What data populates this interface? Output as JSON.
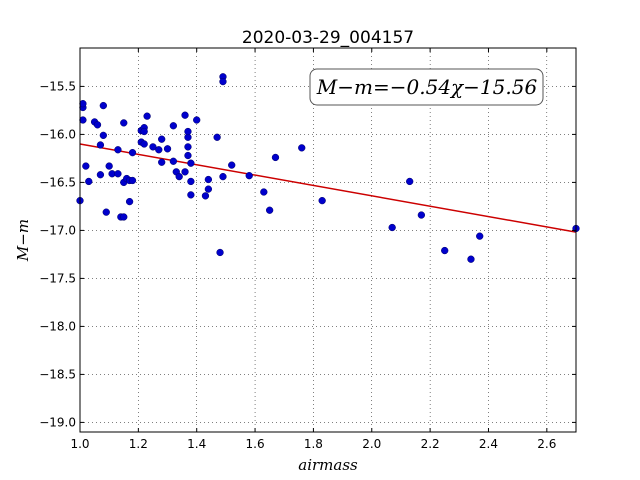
{
  "chart_data": {
    "type": "scatter",
    "title": "2020-03-29_004157",
    "xlabel": "airmass",
    "ylabel": "M−m",
    "xlim": [
      1.0,
      2.7
    ],
    "ylim": [
      -19.1,
      -15.1
    ],
    "xticks": [
      1.0,
      1.2,
      1.4,
      1.6,
      1.8,
      2.0,
      2.2,
      2.4,
      2.6
    ],
    "xtick_labels": [
      "1.0",
      "1.2",
      "1.4",
      "1.6",
      "1.8",
      "2.0",
      "2.2",
      "2.4",
      "2.6"
    ],
    "yticks": [
      -15.5,
      -16.0,
      -16.5,
      -17.0,
      -17.5,
      -18.0,
      -18.5,
      -19.0
    ],
    "ytick_labels": [
      "−15.5",
      "−16.0",
      "−16.5",
      "−17.0",
      "−17.5",
      "−18.0",
      "−18.5",
      "−19.0"
    ],
    "grid": true,
    "annotation": "M−m=−0.54χ−15.56",
    "annotation_placement": "top-right",
    "point_color": "#0000cc",
    "fit_color": "#cc0000",
    "fit": {
      "slope": -0.54,
      "intercept": -15.56
    },
    "points": [
      [
        1.0,
        -16.69
      ],
      [
        1.01,
        -15.72
      ],
      [
        1.01,
        -15.68
      ],
      [
        1.01,
        -15.85
      ],
      [
        1.02,
        -16.33
      ],
      [
        1.03,
        -16.49
      ],
      [
        1.05,
        -15.87
      ],
      [
        1.06,
        -15.9
      ],
      [
        1.07,
        -16.42
      ],
      [
        1.07,
        -16.11
      ],
      [
        1.08,
        -15.7
      ],
      [
        1.08,
        -16.01
      ],
      [
        1.09,
        -16.81
      ],
      [
        1.1,
        -16.33
      ],
      [
        1.11,
        -16.41
      ],
      [
        1.13,
        -16.41
      ],
      [
        1.13,
        -16.16
      ],
      [
        1.14,
        -16.86
      ],
      [
        1.15,
        -16.86
      ],
      [
        1.15,
        -16.5
      ],
      [
        1.15,
        -15.88
      ],
      [
        1.16,
        -16.46
      ],
      [
        1.17,
        -16.48
      ],
      [
        1.17,
        -16.7
      ],
      [
        1.18,
        -16.19
      ],
      [
        1.18,
        -16.48
      ],
      [
        1.21,
        -16.08
      ],
      [
        1.21,
        -15.96
      ],
      [
        1.22,
        -15.93
      ],
      [
        1.22,
        -16.1
      ],
      [
        1.22,
        -15.97
      ],
      [
        1.23,
        -15.81
      ],
      [
        1.25,
        -16.13
      ],
      [
        1.27,
        -16.16
      ],
      [
        1.28,
        -16.05
      ],
      [
        1.28,
        -16.29
      ],
      [
        1.3,
        -16.15
      ],
      [
        1.32,
        -15.91
      ],
      [
        1.32,
        -16.28
      ],
      [
        1.33,
        -16.39
      ],
      [
        1.34,
        -16.44
      ],
      [
        1.36,
        -16.39
      ],
      [
        1.36,
        -15.8
      ],
      [
        1.37,
        -16.03
      ],
      [
        1.37,
        -15.97
      ],
      [
        1.37,
        -16.13
      ],
      [
        1.37,
        -16.22
      ],
      [
        1.38,
        -16.3
      ],
      [
        1.38,
        -16.49
      ],
      [
        1.38,
        -16.63
      ],
      [
        1.4,
        -15.85
      ],
      [
        1.43,
        -16.64
      ],
      [
        1.44,
        -16.57
      ],
      [
        1.44,
        -16.47
      ],
      [
        1.47,
        -16.03
      ],
      [
        1.48,
        -17.23
      ],
      [
        1.49,
        -15.4
      ],
      [
        1.49,
        -15.45
      ],
      [
        1.49,
        -16.44
      ],
      [
        1.52,
        -16.32
      ],
      [
        1.58,
        -16.43
      ],
      [
        1.63,
        -16.6
      ],
      [
        1.65,
        -16.79
      ],
      [
        1.67,
        -16.24
      ],
      [
        1.76,
        -16.14
      ],
      [
        1.83,
        -16.69
      ],
      [
        2.07,
        -16.97
      ],
      [
        2.13,
        -16.49
      ],
      [
        2.17,
        -16.84
      ],
      [
        2.25,
        -17.21
      ],
      [
        2.34,
        -17.3
      ],
      [
        2.37,
        -17.06
      ],
      [
        2.7,
        -16.98
      ]
    ]
  }
}
